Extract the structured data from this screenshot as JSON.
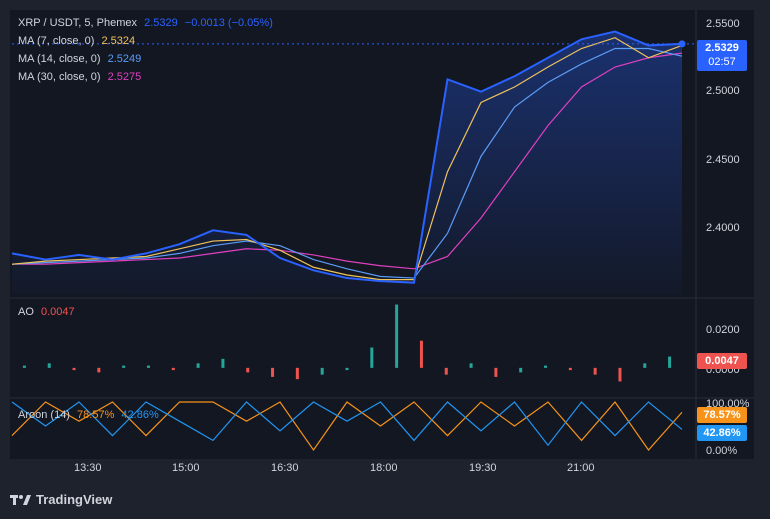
{
  "header": {
    "symbol": "XRP / USDT, 5, Phemex",
    "price": "2.5329",
    "change": "−0.0013 (−0.05%)"
  },
  "ma_legend": [
    {
      "label": "MA (7, close, 0)",
      "value": "2.5324",
      "color": "#f0c25a"
    },
    {
      "label": "MA (14, close, 0)",
      "value": "2.5249",
      "color": "#5b9cf6"
    },
    {
      "label": "MA (30, close, 0)",
      "value": "2.5275",
      "color": "#e040c0"
    }
  ],
  "price_badge": {
    "price": "2.5329",
    "countdown": "02:57",
    "color": "#2962ff"
  },
  "ao": {
    "label": "AO",
    "value": "0.0047",
    "badge": "0.0047",
    "ticks": [
      "0.0200",
      "0.0000"
    ],
    "up_color": "#26a69a",
    "down_color": "#ef5350"
  },
  "aroon": {
    "label": "Aroon (14)",
    "up": "78.57%",
    "down": "42.86%",
    "ticks": [
      "100.00%",
      "0.00%"
    ],
    "up_color": "#f7931a",
    "down_color": "#2196f3"
  },
  "time_labels": [
    "13:30",
    "15:00",
    "16:30",
    "18:00",
    "19:30",
    "21:00"
  ],
  "price_ticks": [
    "2.5500",
    "2.5000",
    "2.4500",
    "2.4000"
  ],
  "brand": "TradingView",
  "chart_data": [
    {
      "type": "line",
      "title": "XRP / USDT, 5, Phemex",
      "ylim": [
        2.37,
        2.555
      ],
      "x": [
        0,
        5,
        10,
        15,
        20,
        25,
        30,
        35,
        40,
        45,
        50,
        55,
        60,
        65,
        70,
        75,
        80,
        85,
        90,
        95,
        100
      ],
      "series": [
        {
          "name": "XRP / USDT",
          "values": [
            2.397,
            2.393,
            2.396,
            2.393,
            2.397,
            2.403,
            2.412,
            2.409,
            2.394,
            2.386,
            2.381,
            2.379,
            2.378,
            2.51,
            2.502,
            2.512,
            2.524,
            2.536,
            2.541,
            2.532,
            2.533
          ]
        },
        {
          "name": "MA (7, close, 0)",
          "values": [
            2.39,
            2.392,
            2.393,
            2.394,
            2.395,
            2.4,
            2.405,
            2.406,
            2.399,
            2.388,
            2.383,
            2.38,
            2.38,
            2.45,
            2.495,
            2.505,
            2.518,
            2.53,
            2.537,
            2.524,
            2.532
          ]
        },
        {
          "name": "MA (14, close, 0)",
          "values": [
            2.39,
            2.391,
            2.392,
            2.393,
            2.394,
            2.397,
            2.402,
            2.405,
            2.402,
            2.393,
            2.387,
            2.382,
            2.381,
            2.41,
            2.46,
            2.492,
            2.508,
            2.52,
            2.53,
            2.53,
            2.525
          ]
        },
        {
          "name": "MA (30, close, 0)",
          "values": [
            2.39,
            2.39,
            2.391,
            2.392,
            2.393,
            2.394,
            2.397,
            2.4,
            2.399,
            2.396,
            2.392,
            2.389,
            2.387,
            2.395,
            2.42,
            2.45,
            2.48,
            2.505,
            2.518,
            2.524,
            2.527
          ]
        }
      ]
    },
    {
      "type": "bar",
      "title": "AO",
      "ylim": [
        -0.012,
        0.03
      ],
      "values": [
        0.001,
        0.002,
        -0.001,
        -0.002,
        0.001,
        0.001,
        -0.001,
        0.002,
        0.004,
        -0.002,
        -0.004,
        -0.005,
        -0.003,
        -0.001,
        0.009,
        0.028,
        0.012,
        -0.003,
        0.002,
        -0.004,
        -0.002,
        0.001,
        -0.001,
        -0.003,
        -0.006,
        0.002,
        0.005
      ]
    },
    {
      "type": "line",
      "title": "Aroon (14)",
      "ylim": [
        0,
        100
      ],
      "x": [
        0,
        5,
        10,
        15,
        20,
        25,
        30,
        35,
        40,
        45,
        50,
        55,
        60,
        65,
        70,
        75,
        80,
        85,
        90,
        95,
        100
      ],
      "series": [
        {
          "name": "Aroon Up",
          "values": [
            30,
            100,
            60,
            100,
            30,
            100,
            100,
            60,
            100,
            0,
            100,
            50,
            100,
            30,
            100,
            50,
            100,
            20,
            100,
            0,
            78.57
          ]
        },
        {
          "name": "Aroon Down",
          "values": [
            100,
            50,
            100,
            30,
            100,
            60,
            20,
            100,
            40,
            100,
            60,
            100,
            20,
            100,
            40,
            100,
            10,
            100,
            30,
            100,
            42.86
          ]
        }
      ]
    }
  ]
}
